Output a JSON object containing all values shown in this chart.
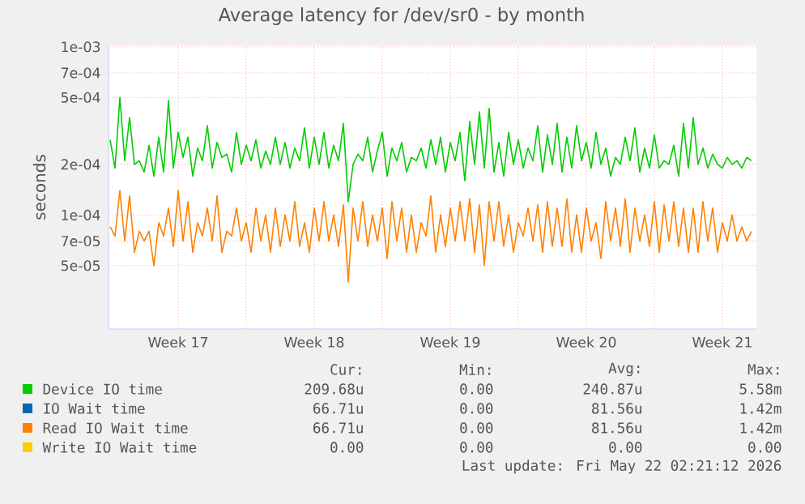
{
  "chart_data": {
    "type": "line",
    "title": "Average latency for /dev/sr0 - by month",
    "ylabel": "seconds",
    "log": true,
    "grid": true,
    "legend": "bottom",
    "xlim": [
      "2026-04-19T22:00",
      "2026-05-23T06:00"
    ],
    "xticks": [
      {
        "value": "2026-04-23T12:00",
        "label": "Week 17"
      },
      {
        "value": "2026-04-27",
        "label": null
      },
      {
        "value": "2026-04-30T12:00",
        "label": "Week 18"
      },
      {
        "value": "2026-05-04",
        "label": null
      },
      {
        "value": "2026-05-07T12:00",
        "label": "Week 19"
      },
      {
        "value": "2026-05-11",
        "label": null
      },
      {
        "value": "2026-05-14T12:00",
        "label": "Week 20"
      },
      {
        "value": "2026-05-18",
        "label": null
      },
      {
        "value": "2026-05-21T12:00",
        "label": "Week 21"
      }
    ],
    "ylim": [
      2.1e-05,
      0.00102
    ],
    "yticks": [
      {
        "value": 5e-05,
        "label": "5e-05"
      },
      {
        "value": 7e-05,
        "label": "7e-05"
      },
      {
        "value": 0.0001,
        "label": "1e-04"
      },
      {
        "value": 0.0002,
        "label": "2e-04"
      },
      {
        "value": 0.0005,
        "label": "5e-04"
      },
      {
        "value": 0.0007,
        "label": "7e-04"
      },
      {
        "value": 0.001,
        "label": "1e-03"
      }
    ],
    "x": [
      "2026-04-20T00:00",
      "2026-04-20T06:00",
      "2026-04-20T12:00",
      "2026-04-20T18:00",
      "2026-04-21T00:00",
      "2026-04-21T06:00",
      "2026-04-21T12:00",
      "2026-04-21T18:00",
      "2026-04-22T00:00",
      "2026-04-22T06:00",
      "2026-04-22T12:00",
      "2026-04-22T18:00",
      "2026-04-23T00:00",
      "2026-04-23T06:00",
      "2026-04-23T12:00",
      "2026-04-23T18:00",
      "2026-04-24T00:00",
      "2026-04-24T06:00",
      "2026-04-24T12:00",
      "2026-04-24T18:00",
      "2026-04-25T00:00",
      "2026-04-25T06:00",
      "2026-04-25T12:00",
      "2026-04-25T18:00",
      "2026-04-26T00:00",
      "2026-04-26T06:00",
      "2026-04-26T12:00",
      "2026-04-26T18:00",
      "2026-04-27T00:00",
      "2026-04-27T06:00",
      "2026-04-27T12:00",
      "2026-04-27T18:00",
      "2026-04-28T00:00",
      "2026-04-28T06:00",
      "2026-04-28T12:00",
      "2026-04-28T18:00",
      "2026-04-29T00:00",
      "2026-04-29T06:00",
      "2026-04-29T12:00",
      "2026-04-29T18:00",
      "2026-04-30T00:00",
      "2026-04-30T06:00",
      "2026-04-30T12:00",
      "2026-04-30T18:00",
      "2026-05-01T00:00",
      "2026-05-01T06:00",
      "2026-05-01T12:00",
      "2026-05-01T18:00",
      "2026-05-02T00:00",
      "2026-05-02T06:00",
      "2026-05-02T12:00",
      "2026-05-02T18:00",
      "2026-05-03T00:00",
      "2026-05-03T06:00",
      "2026-05-03T12:00",
      "2026-05-03T18:00",
      "2026-05-04T00:00",
      "2026-05-04T06:00",
      "2026-05-04T12:00",
      "2026-05-04T18:00",
      "2026-05-05T00:00",
      "2026-05-05T06:00",
      "2026-05-05T12:00",
      "2026-05-05T18:00",
      "2026-05-06T00:00",
      "2026-05-06T06:00",
      "2026-05-06T12:00",
      "2026-05-06T18:00",
      "2026-05-07T00:00",
      "2026-05-07T06:00",
      "2026-05-07T12:00",
      "2026-05-07T18:00",
      "2026-05-08T00:00",
      "2026-05-08T06:00",
      "2026-05-08T12:00",
      "2026-05-08T18:00",
      "2026-05-09T00:00",
      "2026-05-09T06:00",
      "2026-05-09T12:00",
      "2026-05-09T18:00",
      "2026-05-10T00:00",
      "2026-05-10T06:00",
      "2026-05-10T12:00",
      "2026-05-10T18:00",
      "2026-05-11T00:00",
      "2026-05-11T06:00",
      "2026-05-11T12:00",
      "2026-05-11T18:00",
      "2026-05-12T00:00",
      "2026-05-12T06:00",
      "2026-05-12T12:00",
      "2026-05-12T18:00",
      "2026-05-13T00:00",
      "2026-05-13T06:00",
      "2026-05-13T12:00",
      "2026-05-13T18:00",
      "2026-05-14T00:00",
      "2026-05-14T06:00",
      "2026-05-14T12:00",
      "2026-05-14T18:00",
      "2026-05-15T00:00",
      "2026-05-15T06:00",
      "2026-05-15T12:00",
      "2026-05-15T18:00",
      "2026-05-16T00:00",
      "2026-05-16T06:00",
      "2026-05-16T12:00",
      "2026-05-16T18:00",
      "2026-05-17T00:00",
      "2026-05-17T06:00",
      "2026-05-17T12:00",
      "2026-05-17T18:00",
      "2026-05-18T00:00",
      "2026-05-18T06:00",
      "2026-05-18T12:00",
      "2026-05-18T18:00",
      "2026-05-19T00:00",
      "2026-05-19T06:00",
      "2026-05-19T12:00",
      "2026-05-19T18:00",
      "2026-05-20T00:00",
      "2026-05-20T06:00",
      "2026-05-20T12:00",
      "2026-05-20T18:00",
      "2026-05-21T00:00",
      "2026-05-21T06:00",
      "2026-05-21T12:00",
      "2026-05-21T18:00",
      "2026-05-22T00:00",
      "2026-05-22T06:00",
      "2026-05-22T12:00",
      "2026-05-22T18:00",
      "2026-05-23T00:00"
    ],
    "series": [
      {
        "name": "Device IO time",
        "color": "#00cc00",
        "values": [
          0.00028,
          0.00019,
          0.0005,
          0.00021,
          0.00038,
          0.0002,
          0.00021,
          0.00018,
          0.00026,
          0.00017,
          0.00029,
          0.00018,
          0.00048,
          0.00019,
          0.00031,
          0.00022,
          0.00029,
          0.00017,
          0.00025,
          0.00021,
          0.00034,
          0.00019,
          0.00027,
          0.00022,
          0.00023,
          0.00018,
          0.00031,
          0.0002,
          0.00026,
          0.00021,
          0.00028,
          0.00019,
          0.00024,
          0.0002,
          0.00029,
          0.0002,
          0.00027,
          0.00019,
          0.00025,
          0.00021,
          0.00033,
          0.00019,
          0.00029,
          0.0002,
          0.00031,
          0.00019,
          0.00026,
          0.00021,
          0.00035,
          0.00012,
          0.0002,
          0.00023,
          0.00021,
          0.00029,
          0.00018,
          0.00024,
          0.00031,
          0.00017,
          0.00025,
          0.00021,
          0.00027,
          0.00018,
          0.00022,
          0.00021,
          0.00025,
          0.00019,
          0.00028,
          0.0002,
          0.00029,
          0.00018,
          0.00027,
          0.00021,
          0.00031,
          0.00016,
          0.00036,
          0.0002,
          0.00041,
          0.00019,
          0.00043,
          0.00018,
          0.00027,
          0.00017,
          0.00031,
          0.0002,
          0.00028,
          0.00019,
          0.00025,
          0.00021,
          0.00034,
          0.00018,
          0.0003,
          0.0002,
          0.00035,
          0.00018,
          0.00029,
          0.00019,
          0.00034,
          0.00021,
          0.00027,
          0.00019,
          0.00031,
          0.0002,
          0.00025,
          0.00017,
          0.00022,
          0.0002,
          0.00029,
          0.00021,
          0.00033,
          0.00018,
          0.00025,
          0.00019,
          0.0003,
          0.00019,
          0.00021,
          0.0002,
          0.00026,
          0.00017,
          0.00035,
          0.00019,
          0.00038,
          0.0002,
          0.00025,
          0.00019,
          0.00023,
          0.0002,
          0.00019,
          0.00022,
          0.0002,
          0.00021,
          0.00019,
          0.00022,
          0.00021
        ]
      },
      {
        "name": "IO Wait time",
        "color": "#0066b3",
        "values": [
          null,
          null,
          null,
          null,
          null,
          null,
          null,
          null,
          null,
          null,
          null,
          null,
          null,
          null,
          null,
          null,
          null,
          null,
          null,
          null,
          null,
          null,
          null,
          null,
          null,
          null,
          null,
          null,
          null,
          null,
          null,
          null,
          null,
          null,
          null,
          null,
          null,
          null,
          null,
          null,
          null,
          null,
          null,
          null,
          null,
          null,
          null,
          null,
          null,
          null,
          null,
          null,
          null,
          null,
          null,
          null,
          null,
          null,
          null,
          null,
          null,
          null,
          null,
          null,
          null,
          null,
          null,
          null,
          null,
          null,
          null,
          null,
          null,
          null,
          null,
          null,
          null,
          null,
          null,
          null,
          null,
          null,
          null,
          null,
          null,
          null,
          null,
          null,
          null,
          null,
          null,
          null,
          null,
          null,
          null,
          null,
          null,
          null,
          null,
          null,
          null,
          null,
          null,
          null,
          null,
          null,
          null,
          null,
          null,
          null,
          null,
          null,
          null,
          null,
          null,
          null,
          null,
          null,
          null,
          null,
          null,
          null,
          null,
          null,
          null,
          null,
          null,
          null,
          null,
          null,
          null,
          null,
          null
        ]
      },
      {
        "name": "Read IO Wait time",
        "color": "#ff8000",
        "values": [
          8.5e-05,
          7.5e-05,
          0.00014,
          7e-05,
          0.00013,
          6e-05,
          8e-05,
          7e-05,
          8e-05,
          5e-05,
          9e-05,
          7.5e-05,
          0.00011,
          6.5e-05,
          0.00014,
          7e-05,
          0.00012,
          6e-05,
          9e-05,
          7.5e-05,
          0.00011,
          7e-05,
          0.00013,
          6e-05,
          8e-05,
          7.5e-05,
          0.00011,
          7e-05,
          9e-05,
          6e-05,
          0.00011,
          7e-05,
          0.0001,
          6e-05,
          0.00011,
          6.5e-05,
          0.0001,
          7e-05,
          0.00012,
          6.5e-05,
          9e-05,
          6e-05,
          0.00011,
          7e-05,
          0.00012,
          7e-05,
          0.0001,
          6.5e-05,
          0.000115,
          4e-05,
          0.00011,
          7e-05,
          0.00012,
          6.5e-05,
          0.0001,
          7e-05,
          0.00011,
          5.5e-05,
          0.00012,
          7e-05,
          0.00011,
          6e-05,
          0.0001,
          6e-05,
          9e-05,
          7.5e-05,
          0.00013,
          6e-05,
          0.0001,
          6.5e-05,
          0.00011,
          7e-05,
          0.00012,
          7e-05,
          0.000125,
          6e-05,
          0.000115,
          5e-05,
          0.00012,
          7e-05,
          0.00012,
          6.5e-05,
          0.0001,
          6e-05,
          9e-05,
          7.5e-05,
          0.00011,
          7e-05,
          0.000115,
          6e-05,
          0.00012,
          6.5e-05,
          0.00011,
          6.5e-05,
          0.000125,
          6e-05,
          0.0001,
          6e-05,
          0.00011,
          7e-05,
          9e-05,
          5.5e-05,
          0.00012,
          7e-05,
          0.00011,
          6.5e-05,
          0.000125,
          6e-05,
          0.00011,
          7e-05,
          0.0001,
          6.5e-05,
          0.00012,
          6e-05,
          0.000115,
          7e-05,
          0.00012,
          6.5e-05,
          0.00011,
          6e-05,
          0.00011,
          6e-05,
          0.00012,
          7e-05,
          0.00011,
          6e-05,
          9e-05,
          7e-05,
          0.0001,
          7e-05,
          8.5e-05,
          7e-05,
          8e-05
        ]
      },
      {
        "name": "Write IO Wait time",
        "color": "#ffcc00",
        "values": [
          null,
          null,
          null,
          null,
          null,
          null,
          null,
          null,
          null,
          null,
          null,
          null,
          null,
          null,
          null,
          null,
          null,
          null,
          null,
          null,
          null,
          null,
          null,
          null,
          null,
          null,
          null,
          null,
          null,
          null,
          null,
          null,
          null,
          null,
          null,
          null,
          null,
          null,
          null,
          null,
          null,
          null,
          null,
          null,
          null,
          null,
          null,
          null,
          null,
          null,
          null,
          null,
          null,
          null,
          null,
          null,
          null,
          null,
          null,
          null,
          null,
          null,
          null,
          null,
          null,
          null,
          null,
          null,
          null,
          null,
          null,
          null,
          null,
          null,
          null,
          null,
          null,
          null,
          null,
          null,
          null,
          null,
          null,
          null,
          null,
          null,
          null,
          null,
          null,
          null,
          null,
          null,
          null,
          null,
          null,
          null,
          null,
          null,
          null,
          null,
          null,
          null,
          null,
          null,
          null,
          null,
          null,
          null,
          null,
          null,
          null,
          null,
          null,
          null,
          null,
          null,
          null,
          null,
          null,
          null,
          null,
          null,
          null,
          null,
          null,
          null,
          null,
          null,
          null,
          null,
          null,
          null,
          null
        ]
      }
    ],
    "annotations": [
      "Cur:",
      "Min:",
      "Avg:",
      "Max:",
      "209.68u",
      "0.00",
      "240.87u",
      "5.58m",
      "66.71u",
      "0.00",
      "81.56u",
      "1.42m",
      "66.71u",
      "0.00",
      "81.56u",
      "1.42m",
      "0.00",
      "0.00",
      "0.00",
      "0.00",
      "Last update: Fri May 22 02:21:12 2026"
    ]
  }
}
